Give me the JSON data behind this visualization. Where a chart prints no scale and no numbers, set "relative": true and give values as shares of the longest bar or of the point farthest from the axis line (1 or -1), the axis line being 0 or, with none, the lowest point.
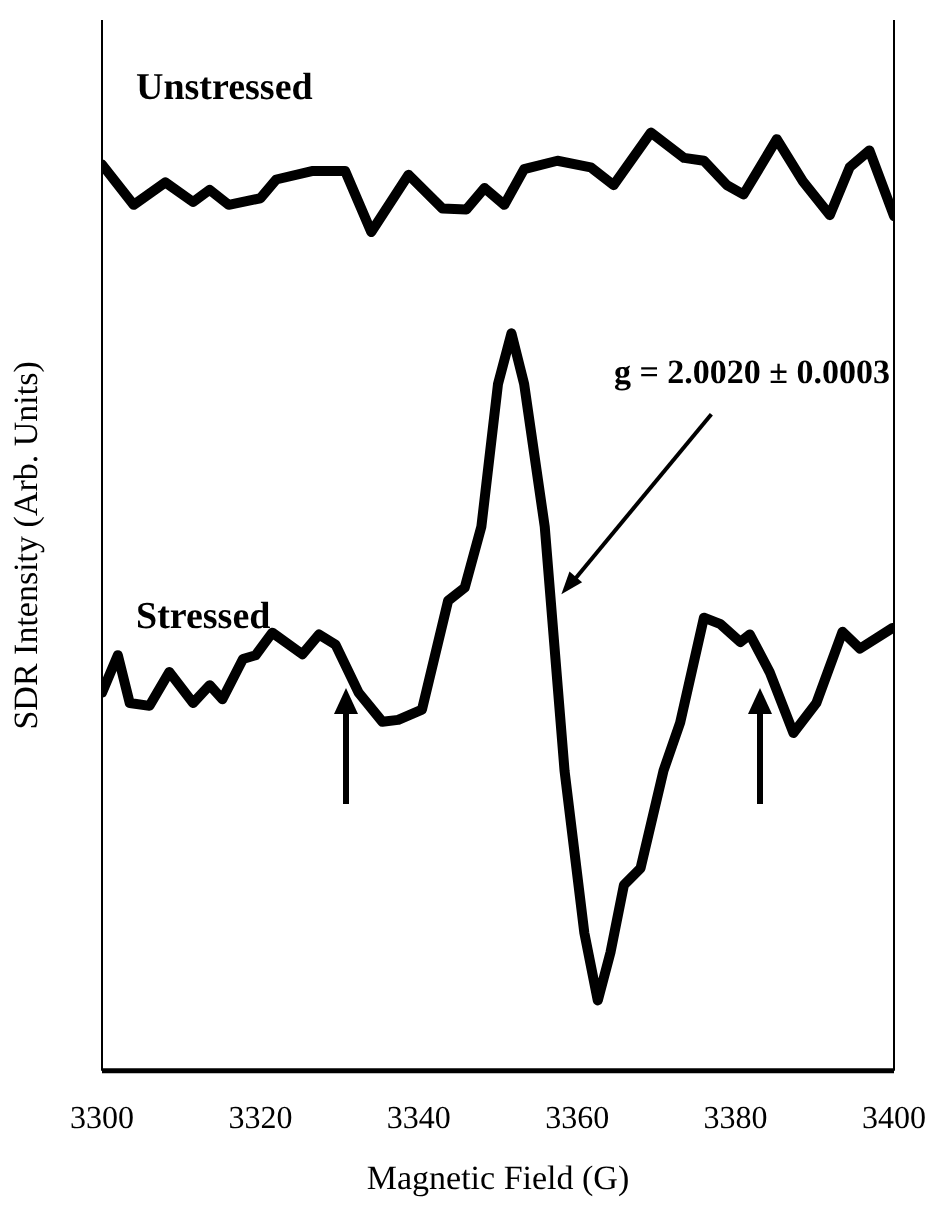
{
  "chart_data": {
    "type": "line",
    "xlabel": "Magnetic Field (G)",
    "ylabel": "SDR Intensity (Arb. Units)",
    "relative": true,
    "xlim": [
      3300,
      3400
    ],
    "xticks": [
      3300,
      3320,
      3340,
      3360,
      3380,
      3400
    ],
    "grid": false,
    "legend": false,
    "marker": "none",
    "line_style": "solid",
    "annotations": [
      {
        "text": "g = 2.0020 ± 0.0003",
        "x": 3358,
        "y": 0.508
      }
    ],
    "series": [
      {
        "name": "Unstressed",
        "color": "#000000",
        "x": [
          3300,
          3304,
          3308,
          3311.5,
          3313.6,
          3316,
          3320,
          3322,
          3326.5,
          3330.7,
          3334,
          3338.7,
          3343,
          3346,
          3348.3,
          3350.8,
          3353.3,
          3357.5,
          3361.7,
          3364.6,
          3369.3,
          3373.5,
          3376,
          3378.9,
          3381,
          3385.2,
          3388.5,
          3391.9,
          3394.4,
          3396.9,
          3400
        ],
        "values": [
          0.966,
          0.923,
          0.947,
          0.926,
          0.939,
          0.923,
          0.93,
          0.95,
          0.959,
          0.959,
          0.894,
          0.955,
          0.919,
          0.918,
          0.941,
          0.923,
          0.961,
          0.97,
          0.963,
          0.944,
          1,
          0.973,
          0.97,
          0.944,
          0.934,
          0.993,
          0.948,
          0.912,
          0.963,
          0.981,
          0.911
        ]
      },
      {
        "name": "Stressed",
        "color": "#000000",
        "x": [
          3300,
          3302,
          3303.5,
          3306,
          3308.5,
          3311.5,
          3313.6,
          3315.2,
          3317.8,
          3319.4,
          3321.5,
          3325.3,
          3327.4,
          3329.5,
          3332.4,
          3335.4,
          3337.4,
          3340.4,
          3343.7,
          3345.8,
          3347.9,
          3350,
          3351.7,
          3353.3,
          3355.9,
          3358.4,
          3360.9,
          3362.6,
          3364.2,
          3365.9,
          3368,
          3370.9,
          3373,
          3376,
          3378.1,
          3380.6,
          3381.8,
          3384.3,
          3387.3,
          3390.2,
          3393.5,
          3395.7,
          3399.8
        ],
        "values": [
          0.403,
          0.443,
          0.392,
          0.389,
          0.425,
          0.392,
          0.411,
          0.396,
          0.439,
          0.443,
          0.467,
          0.444,
          0.465,
          0.454,
          0.403,
          0.372,
          0.374,
          0.385,
          0.501,
          0.515,
          0.58,
          0.732,
          0.786,
          0.732,
          0.58,
          0.32,
          0.147,
          0.075,
          0.126,
          0.198,
          0.216,
          0.32,
          0.371,
          0.483,
          0.476,
          0.457,
          0.465,
          0.425,
          0.36,
          0.392,
          0.468,
          0.45,
          0.472
        ]
      }
    ]
  }
}
